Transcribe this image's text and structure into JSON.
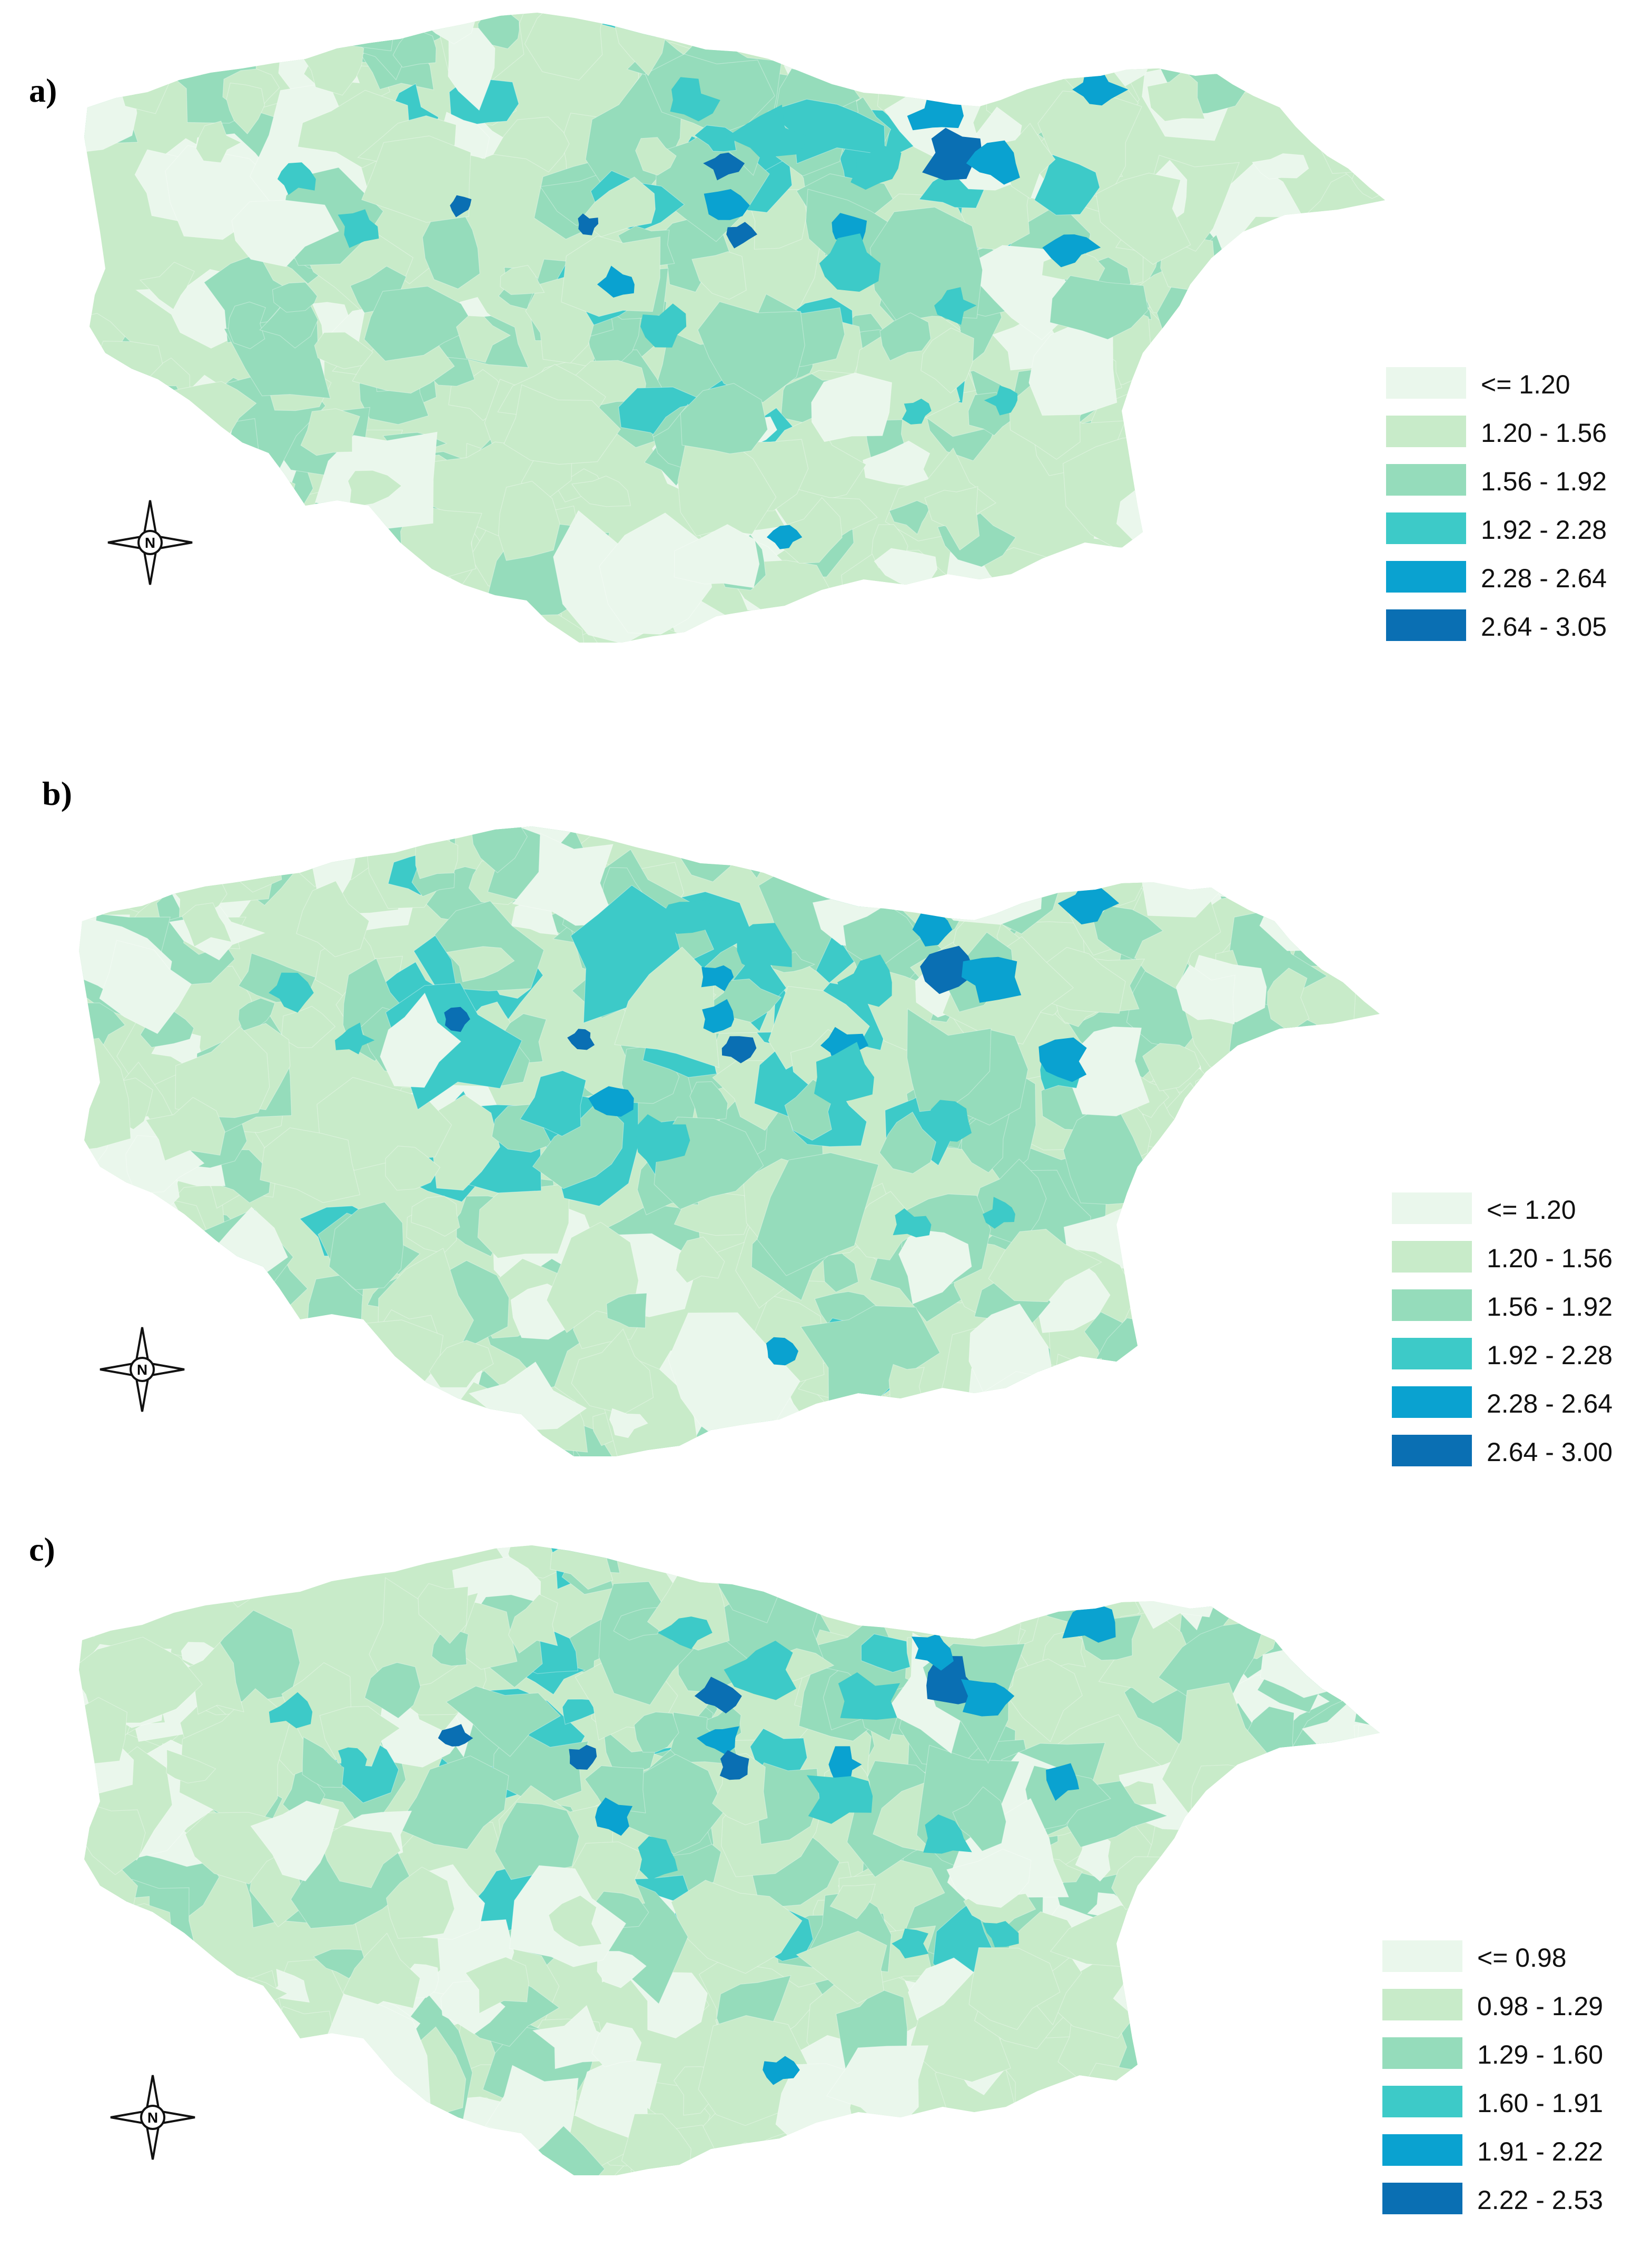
{
  "colors": [
    "#eaf7ec",
    "#c8ebc9",
    "#95dcbb",
    "#3dcac8",
    "#0aa2d0",
    "#0a6fb3"
  ],
  "compass": {
    "letter": "N",
    "icon": "north-arrow-icon"
  },
  "panels": [
    {
      "label": "a)",
      "legend": [
        "<= 1.20",
        "1.20 - 1.56",
        "1.56 - 1.92",
        "1.92 - 2.28",
        "2.28 - 2.64",
        "2.64 - 3.05"
      ]
    },
    {
      "label": "b)",
      "legend": [
        "<= 1.20",
        "1.20 - 1.56",
        "1.56 - 1.92",
        "1.92 - 2.28",
        "2.28 - 2.64",
        "2.64 - 3.00"
      ]
    },
    {
      "label": "c)",
      "legend": [
        "<= 0.98",
        "0.98 - 1.29",
        "1.29 - 1.60",
        "1.60 - 1.91",
        "1.91 - 2.22",
        "2.22 - 2.53"
      ]
    }
  ]
}
